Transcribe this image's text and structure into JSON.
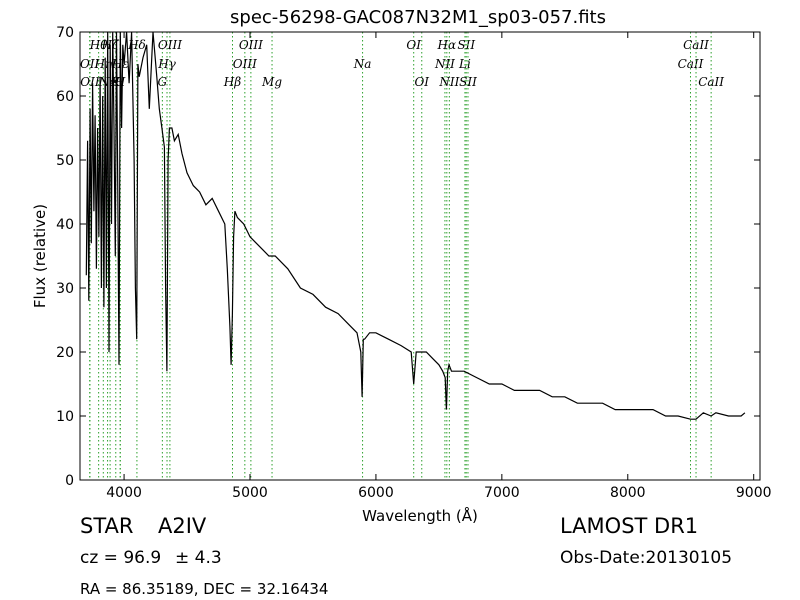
{
  "chart_data": {
    "type": "line",
    "title": "spec-56298-GAC087N32M1_sp03-057.fits",
    "xlabel": "Wavelength (Å)",
    "ylabel": "Flux (relative)",
    "xlim": [
      3650,
      9050
    ],
    "ylim": [
      0,
      70
    ],
    "xticks": [
      4000,
      5000,
      6000,
      7000,
      8000,
      9000
    ],
    "yticks": [
      0,
      10,
      20,
      30,
      40,
      50,
      60,
      70
    ],
    "grid": false,
    "line_color": "#000000",
    "marker_color": "#2ca02c",
    "series": [
      {
        "x": [
          3700,
          3710,
          3720,
          3730,
          3740,
          3750,
          3760,
          3770,
          3780,
          3790,
          3800,
          3810,
          3820,
          3830,
          3840,
          3850,
          3860,
          3870,
          3880,
          3890,
          3900,
          3910,
          3920,
          3930,
          3940,
          3950,
          3960,
          3970,
          3980,
          3990,
          4000,
          4020,
          4040,
          4060,
          4080,
          4090,
          4100,
          4110,
          4120,
          4150,
          4180,
          4200,
          4230,
          4260,
          4280,
          4300,
          4320,
          4330,
          4340,
          4350,
          4360,
          4380,
          4400,
          4430,
          4460,
          4500,
          4550,
          4600,
          4650,
          4700,
          4750,
          4800,
          4820,
          4840,
          4850,
          4860,
          4870,
          4880,
          4900,
          4950,
          5000,
          5050,
          5100,
          5150,
          5200,
          5300,
          5400,
          5500,
          5600,
          5700,
          5800,
          5850,
          5880,
          5890,
          5900,
          5910,
          5950,
          6000,
          6100,
          6200,
          6280,
          6300,
          6320,
          6400,
          6450,
          6500,
          6530,
          6550,
          6560,
          6570,
          6580,
          6600,
          6650,
          6700,
          6800,
          6900,
          7000,
          7100,
          7200,
          7300,
          7400,
          7500,
          7600,
          7700,
          7800,
          7900,
          8000,
          8100,
          8200,
          8300,
          8400,
          8498,
          8542,
          8600,
          8662,
          8700,
          8800,
          8900,
          8930
        ],
        "y": [
          32,
          53,
          28,
          58,
          37,
          62,
          42,
          57,
          33,
          55,
          38,
          63,
          30,
          60,
          27,
          66,
          30,
          70,
          20,
          68,
          40,
          70,
          55,
          35,
          70,
          45,
          18,
          70,
          55,
          68,
          65,
          70,
          62,
          70,
          50,
          30,
          22,
          65,
          63,
          66,
          68,
          58,
          70,
          63,
          58,
          55,
          52,
          30,
          17,
          50,
          55,
          55,
          53,
          54,
          51,
          48,
          46,
          45,
          43,
          44,
          42,
          40,
          33,
          24,
          18,
          26,
          38,
          42,
          41,
          40,
          38,
          37,
          36,
          35,
          35,
          33,
          30,
          29,
          27,
          26,
          24,
          23,
          20,
          13,
          22,
          22,
          23,
          23,
          22,
          21,
          20,
          15,
          20,
          20,
          19,
          18,
          17,
          16,
          11,
          17,
          18,
          17,
          17,
          17,
          16,
          15,
          15,
          14,
          14,
          14,
          13,
          13,
          12,
          12,
          12,
          11,
          11,
          11,
          11,
          10,
          10,
          9.5,
          9.5,
          10.5,
          10,
          10.5,
          10,
          10,
          10.5
        ]
      }
    ],
    "line_markers": [
      {
        "x": 3727,
        "label": "OII",
        "row": 1
      },
      {
        "x": 3729,
        "label": "OII",
        "row": 2
      },
      {
        "x": 3798,
        "label": "Hθ",
        "row": 0
      },
      {
        "x": 3835,
        "label": "Hη",
        "row": 1
      },
      {
        "x": 3869,
        "label": "Ne",
        "row": 2
      },
      {
        "x": 3889,
        "label": "Hζ",
        "row": 0
      },
      {
        "x": 3934,
        "label": "K",
        "row": 2
      },
      {
        "x": 3969,
        "label": "H",
        "row": 2
      },
      {
        "x": 3970,
        "label": "Hε",
        "row": 1
      },
      {
        "x": 4102,
        "label": "Hδ",
        "row": 0
      },
      {
        "x": 4304,
        "label": "G",
        "row": 2
      },
      {
        "x": 4341,
        "label": "Hγ",
        "row": 1
      },
      {
        "x": 4364,
        "label": "OIII",
        "row": 0
      },
      {
        "x": 4861,
        "label": "Hβ",
        "row": 2
      },
      {
        "x": 4959,
        "label": "OIII",
        "row": 1
      },
      {
        "x": 5007,
        "label": "OIII",
        "row": 0
      },
      {
        "x": 5175,
        "label": "Mg",
        "row": 2
      },
      {
        "x": 5894,
        "label": "Na",
        "row": 1
      },
      {
        "x": 6300,
        "label": "OI",
        "row": 0
      },
      {
        "x": 6364,
        "label": "OI",
        "row": 2
      },
      {
        "x": 6548,
        "label": "NII",
        "row": 1
      },
      {
        "x": 6563,
        "label": "Hα",
        "row": 0
      },
      {
        "x": 6583,
        "label": "NII",
        "row": 2
      },
      {
        "x": 6707,
        "label": "Li",
        "row": 1
      },
      {
        "x": 6717,
        "label": "SII",
        "row": 0
      },
      {
        "x": 6731,
        "label": "SII",
        "row": 2
      },
      {
        "x": 8498,
        "label": "CaII",
        "row": 1
      },
      {
        "x": 8542,
        "label": "CaII",
        "row": 0
      },
      {
        "x": 8662,
        "label": "CaII",
        "row": 2
      }
    ]
  },
  "footer": {
    "object_class": "STAR",
    "subclass": "A2IV",
    "survey": "LAMOST DR1",
    "cz_text": "cz = 96.9",
    "cz_err_text": "± 4.3",
    "obs_date": "Obs-Date:20130105",
    "coords": "RA = 86.35189, DEC = 32.16434"
  }
}
